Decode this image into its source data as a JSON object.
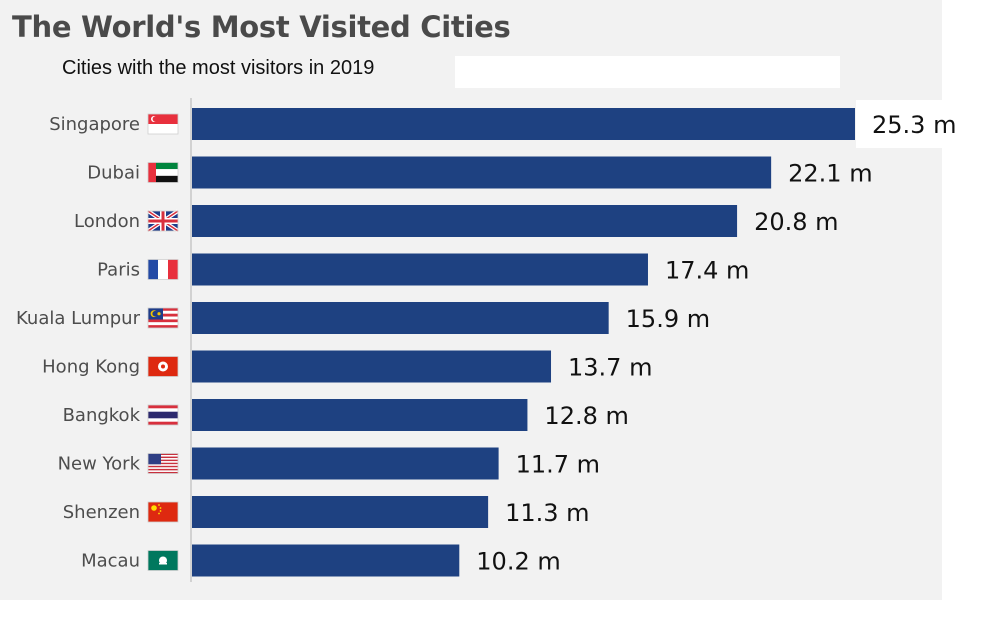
{
  "colors": {
    "bar": "#1e4181",
    "background": "#f2f2f2",
    "axis": "#c8c8c8"
  },
  "chart_data": {
    "type": "bar",
    "orientation": "horizontal",
    "title": "The World's Most Visited Cities",
    "subtitle": "Cities with the most visitors in 2019",
    "xlabel": "",
    "ylabel": "",
    "xlim": [
      0,
      25.3
    ],
    "grid": false,
    "legend": "none",
    "categories": [
      "Singapore",
      "Dubai",
      "London",
      "Paris",
      "Kuala Lumpur",
      "Hong Kong",
      "Bangkok",
      "New York",
      "Shenzen",
      "Macau"
    ],
    "flags": [
      "singapore-flag-icon",
      "uae-flag-icon",
      "uk-flag-icon",
      "france-flag-icon",
      "malaysia-flag-icon",
      "hong-kong-flag-icon",
      "thailand-flag-icon",
      "usa-flag-icon",
      "china-flag-icon",
      "macau-flag-icon"
    ],
    "values": [
      25.3,
      22.1,
      20.8,
      17.4,
      15.9,
      13.7,
      12.8,
      11.7,
      11.3,
      10.2
    ],
    "value_labels": [
      "25.3 m",
      "22.1 m",
      "20.8 m",
      "17.4 m",
      "15.9 m",
      "13.7 m",
      "12.8 m",
      "11.7 m",
      "11.3 m",
      "10.2 m"
    ]
  }
}
